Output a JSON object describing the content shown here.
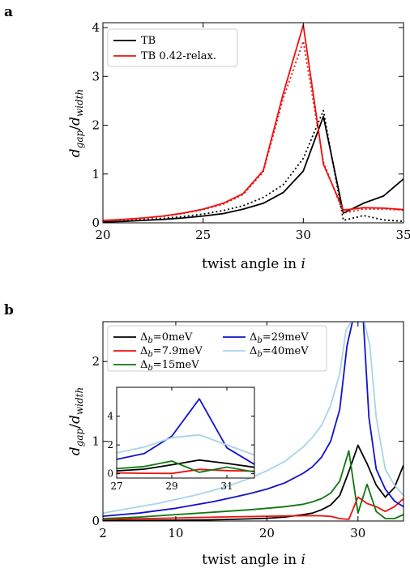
{
  "chart_data": [
    {
      "panel": "a",
      "type": "line",
      "xlabel": "twist angle in i",
      "ylabel": "d_gap/d_width",
      "xlim": [
        20,
        35
      ],
      "ylim": [
        0,
        4.1
      ],
      "xticks": [
        20,
        25,
        30,
        35
      ],
      "yticks": [
        0,
        1,
        2,
        3,
        4
      ],
      "legend_position": "upper-left",
      "series": [
        {
          "name": "TB",
          "color": "#000000",
          "style": "solid",
          "x": [
            20,
            21,
            22,
            23,
            24,
            25,
            26,
            27,
            28,
            29,
            30,
            31,
            32,
            33,
            34,
            35
          ],
          "values": [
            0.02,
            0.03,
            0.05,
            0.07,
            0.1,
            0.14,
            0.19,
            0.28,
            0.4,
            0.62,
            1.06,
            2.18,
            0.2,
            0.4,
            0.55,
            0.9
          ]
        },
        {
          "name": "TB 0.42-relax.",
          "color": "#ee1111",
          "style": "solid",
          "x": [
            20,
            21,
            22,
            23,
            24,
            25,
            26,
            27,
            28,
            29,
            30,
            31,
            32,
            33,
            34,
            35
          ],
          "values": [
            0.05,
            0.07,
            0.1,
            0.14,
            0.2,
            0.28,
            0.4,
            0.6,
            1.07,
            2.65,
            4.05,
            1.2,
            0.26,
            0.31,
            0.3,
            0.27
          ]
        },
        {
          "name": "",
          "color": "#000000",
          "style": "dotted",
          "x": [
            20,
            21,
            22,
            23,
            24,
            25,
            26,
            27,
            28,
            29,
            30,
            31,
            32,
            33,
            34,
            35
          ],
          "values": [
            0.02,
            0.04,
            0.06,
            0.09,
            0.13,
            0.18,
            0.25,
            0.35,
            0.52,
            0.78,
            1.32,
            2.3,
            0.05,
            0.15,
            0.06,
            0.03
          ]
        },
        {
          "name": "",
          "color": "#ee1111",
          "style": "dotted",
          "x": [
            20,
            21,
            22,
            23,
            24,
            25,
            26,
            27,
            28,
            29,
            30,
            31,
            32,
            33,
            34,
            35
          ],
          "values": [
            0.04,
            0.06,
            0.09,
            0.13,
            0.19,
            0.27,
            0.38,
            0.58,
            1.04,
            2.55,
            3.72,
            1.25,
            0.2,
            0.28,
            0.28,
            0.26
          ]
        }
      ]
    },
    {
      "panel": "b",
      "type": "line",
      "xlabel": "twist angle in i",
      "ylabel": "d_gap/d_width",
      "xlim": [
        2,
        35
      ],
      "ylim": [
        0,
        2.5
      ],
      "xticks": [
        2,
        10,
        20,
        30
      ],
      "yticks": [
        0,
        1,
        2
      ],
      "legend_position": "top",
      "series": [
        {
          "name": "Δb=0meV",
          "sub": "b",
          "suffix": "=0meV",
          "color": "#000000",
          "x": [
            2,
            4,
            6,
            8,
            10,
            12,
            14,
            16,
            18,
            20,
            22,
            24,
            25,
            26,
            27,
            28,
            29,
            30,
            31,
            32,
            33,
            34,
            35
          ],
          "values": [
            0.005,
            0.006,
            0.007,
            0.008,
            0.01,
            0.012,
            0.015,
            0.02,
            0.026,
            0.035,
            0.05,
            0.08,
            0.1,
            0.14,
            0.2,
            0.32,
            0.62,
            0.95,
            0.72,
            0.45,
            0.3,
            0.42,
            0.7
          ]
        },
        {
          "name": "Δb=7.9meV",
          "sub": "b",
          "suffix": "=7.9meV",
          "color": "#ee1111",
          "x": [
            2,
            4,
            6,
            8,
            10,
            12,
            14,
            16,
            18,
            20,
            22,
            24,
            25,
            26,
            27,
            28,
            29,
            30,
            31,
            32,
            33,
            34,
            35
          ],
          "values": [
            0.02,
            0.024,
            0.028,
            0.033,
            0.038,
            0.043,
            0.048,
            0.052,
            0.056,
            0.06,
            0.063,
            0.066,
            0.067,
            0.065,
            0.058,
            0.03,
            0.02,
            0.3,
            0.22,
            0.18,
            0.12,
            0.18,
            0.28
          ]
        },
        {
          "name": "Δb=15meV",
          "sub": "b",
          "suffix": "=15meV",
          "color": "#117711",
          "x": [
            2,
            4,
            6,
            8,
            10,
            12,
            14,
            16,
            18,
            20,
            22,
            24,
            25,
            26,
            27,
            28,
            29,
            30,
            31,
            32,
            33,
            34,
            35
          ],
          "values": [
            0.03,
            0.04,
            0.05,
            0.065,
            0.08,
            0.095,
            0.11,
            0.125,
            0.14,
            0.16,
            0.18,
            0.21,
            0.24,
            0.28,
            0.35,
            0.5,
            0.88,
            0.1,
            0.46,
            0.12,
            0.03,
            0.03,
            0.08
          ]
        },
        {
          "name": "Δb=29meV",
          "sub": "b",
          "suffix": "=29meV",
          "color": "#1111cc",
          "x": [
            2,
            4,
            6,
            8,
            10,
            12,
            14,
            16,
            18,
            20,
            22,
            24,
            25,
            26,
            27,
            28,
            28.8,
            29.4,
            30.6,
            31.2,
            32,
            33,
            34,
            35
          ],
          "values": [
            0.06,
            0.08,
            0.1,
            0.13,
            0.16,
            0.2,
            0.24,
            0.29,
            0.34,
            0.4,
            0.48,
            0.6,
            0.68,
            0.8,
            1.0,
            1.4,
            2.2,
            2.5,
            2.5,
            1.3,
            0.65,
            0.4,
            0.25,
            0.18
          ]
        },
        {
          "name": "Δb=40meV",
          "sub": "b",
          "suffix": "=40meV",
          "color": "#a8d4e8",
          "x": [
            2,
            4,
            6,
            8,
            10,
            12,
            14,
            16,
            18,
            20,
            22,
            24,
            25,
            26,
            27,
            28,
            28.7,
            29.3,
            30.7,
            31.3,
            32,
            33,
            34,
            35
          ],
          "values": [
            0.1,
            0.14,
            0.18,
            0.22,
            0.27,
            0.32,
            0.38,
            0.45,
            0.53,
            0.63,
            0.75,
            0.93,
            1.05,
            1.2,
            1.45,
            1.85,
            2.4,
            2.5,
            2.5,
            2.2,
            1.3,
            0.65,
            0.45,
            0.32
          ]
        }
      ],
      "inset": {
        "type": "line",
        "xlim": [
          27,
          32
        ],
        "ylim": [
          -0.3,
          6
        ],
        "xticks": [
          27,
          29,
          31
        ],
        "yticks": [
          0,
          2,
          4
        ],
        "series": [
          {
            "color": "#000000",
            "x": [
              27,
              28,
              29,
              30,
              31,
              32
            ],
            "values": [
              0.2,
              0.32,
              0.62,
              0.95,
              0.72,
              0.45
            ]
          },
          {
            "color": "#ee1111",
            "x": [
              27,
              28,
              29,
              30,
              31,
              32
            ],
            "values": [
              0.06,
              0.03,
              0.02,
              0.3,
              0.22,
              0.18
            ]
          },
          {
            "color": "#117711",
            "x": [
              27,
              28,
              29,
              30,
              31,
              32
            ],
            "values": [
              0.35,
              0.5,
              0.88,
              0.1,
              0.46,
              0.12
            ]
          },
          {
            "color": "#1111cc",
            "x": [
              27,
              28,
              29,
              30,
              31,
              32
            ],
            "values": [
              1.0,
              1.4,
              2.6,
              5.2,
              1.8,
              0.65
            ]
          },
          {
            "color": "#a8d4e8",
            "x": [
              27,
              28,
              29,
              30,
              31,
              32
            ],
            "values": [
              1.45,
              1.85,
              2.5,
              2.7,
              2.0,
              1.3
            ]
          }
        ]
      }
    }
  ]
}
